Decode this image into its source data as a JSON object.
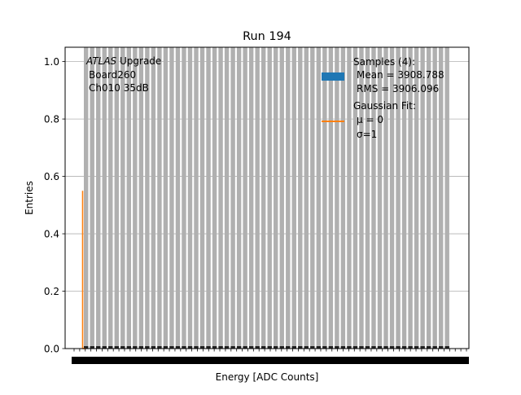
{
  "chart_data": {
    "type": "bar",
    "title": "Run 194",
    "xlabel": "Energy [ADC Counts]",
    "ylabel": "Entries",
    "ylim": [
      0,
      1.05
    ],
    "yticks": [
      "0.0",
      "0.2",
      "0.4",
      "0.6",
      "0.8",
      "1.0"
    ],
    "grid": "horizontal",
    "legend_position": "top-right",
    "annotation": {
      "experiment": "ATLAS",
      "suffix": " Upgrade",
      "board": "Board260",
      "channel": "Ch010 35dB"
    },
    "histogram": {
      "name": "Samples (4):",
      "mean_text": "Mean = 3908.788",
      "rms_text": "RMS = 3906.096",
      "color": "#1f77b4",
      "bars_color": "#b0b0b0",
      "bar_count": 60,
      "bar_value": 1.0
    },
    "fit": {
      "name": "Gaussian Fit:",
      "mu_text": "μ = 0",
      "sigma_text": "σ=1",
      "color": "#ff7f0e",
      "peak": 0.55
    }
  }
}
